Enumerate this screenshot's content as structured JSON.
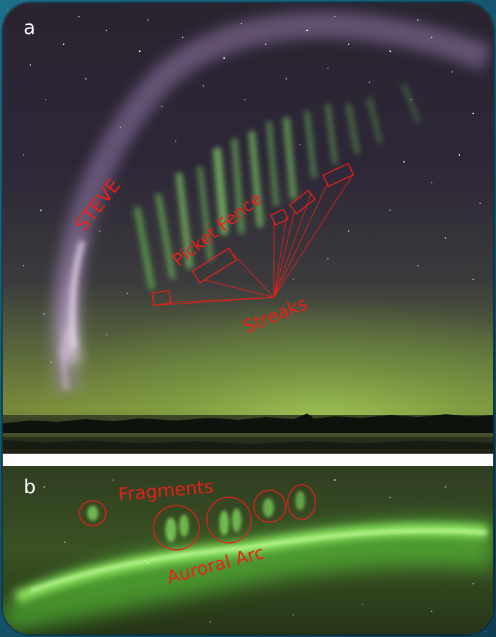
{
  "panels": [
    {
      "letter": "a",
      "labels": {
        "steve": "STEVE",
        "picket_fence": "Picket Fence",
        "streaks": "Streaks"
      }
    },
    {
      "letter": "b",
      "labels": {
        "fragments": "Fragments",
        "auroral_arc": "Auroral Arc"
      }
    }
  ],
  "colors": {
    "annotation": "#e8201c",
    "aurora_green": "#7cff5a",
    "steve_mauve": "#c9a9d8",
    "sky": "#2a2233"
  }
}
